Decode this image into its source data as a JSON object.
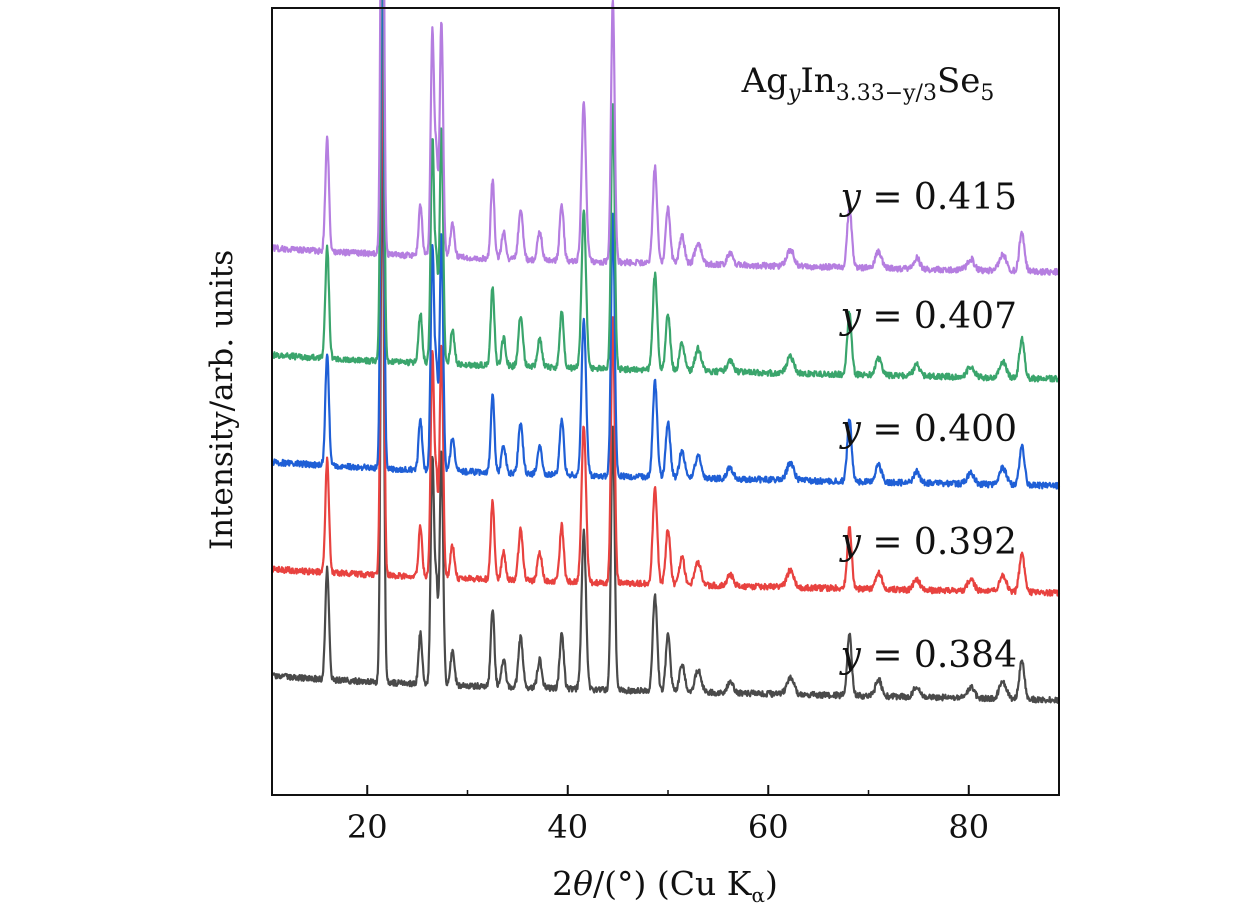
{
  "chart_data": {
    "type": "line",
    "title": "",
    "annotation": {
      "base": "Ag",
      "sub1": "y",
      "mid": "In",
      "sub2": "3.33−y/3",
      "tail": "Se",
      "sub3": "5"
    },
    "xlabel": {
      "prefix": "2",
      "theta": "θ",
      "mid": "/(°) (Cu K",
      "sub": "α",
      "suffix": ")"
    },
    "ylabel": "Intensity/arb. units",
    "xlim": [
      10.5,
      89
    ],
    "xticks": [
      20,
      40,
      60,
      80
    ],
    "xtick_labels": [
      "20",
      "40",
      "60",
      "80"
    ],
    "xminor_ticks": [
      30,
      50,
      70
    ],
    "yticks": [],
    "peaks": [
      {
        "pos": 16.0,
        "rel": 0.2,
        "w": 0.18
      },
      {
        "pos": 21.5,
        "rel": 1.0,
        "w": 0.16
      },
      {
        "pos": 25.3,
        "rel": 0.09,
        "w": 0.18
      },
      {
        "pos": 26.5,
        "rel": 0.4,
        "w": 0.17
      },
      {
        "pos": 26.9,
        "rel": 0.17,
        "w": 0.15
      },
      {
        "pos": 27.4,
        "rel": 0.42,
        "w": 0.17
      },
      {
        "pos": 28.5,
        "rel": 0.06,
        "w": 0.2
      },
      {
        "pos": 32.5,
        "rel": 0.14,
        "w": 0.18
      },
      {
        "pos": 33.6,
        "rel": 0.05,
        "w": 0.2
      },
      {
        "pos": 35.3,
        "rel": 0.09,
        "w": 0.22
      },
      {
        "pos": 37.2,
        "rel": 0.05,
        "w": 0.22
      },
      {
        "pos": 39.4,
        "rel": 0.1,
        "w": 0.2
      },
      {
        "pos": 41.6,
        "rel": 0.28,
        "w": 0.22
      },
      {
        "pos": 44.5,
        "rel": 0.47,
        "w": 0.18
      },
      {
        "pos": 48.7,
        "rel": 0.17,
        "w": 0.22
      },
      {
        "pos": 50.0,
        "rel": 0.1,
        "w": 0.22
      },
      {
        "pos": 51.4,
        "rel": 0.05,
        "w": 0.25
      },
      {
        "pos": 53.0,
        "rel": 0.04,
        "w": 0.3
      },
      {
        "pos": 56.2,
        "rel": 0.02,
        "w": 0.3
      },
      {
        "pos": 62.2,
        "rel": 0.03,
        "w": 0.35
      },
      {
        "pos": 68.1,
        "rel": 0.11,
        "w": 0.22
      },
      {
        "pos": 71.0,
        "rel": 0.03,
        "w": 0.3
      },
      {
        "pos": 74.8,
        "rel": 0.02,
        "w": 0.3
      },
      {
        "pos": 80.2,
        "rel": 0.02,
        "w": 0.35
      },
      {
        "pos": 83.4,
        "rel": 0.03,
        "w": 0.35
      },
      {
        "pos": 85.3,
        "rel": 0.07,
        "w": 0.25
      }
    ],
    "series": [
      {
        "name": "y = 0.384",
        "y_value": "0.384",
        "color": "#4a4a4a",
        "offset": 0.0
      },
      {
        "name": "y = 0.392",
        "y_value": "0.392",
        "color": "#e8423f",
        "offset": 1.0
      },
      {
        "name": "y = 0.400",
        "y_value": "0.400",
        "color": "#1f5fd6",
        "offset": 2.0
      },
      {
        "name": "y = 0.407",
        "y_value": "0.407",
        "color": "#3aa56c",
        "offset": 3.0
      },
      {
        "name": "y = 0.415",
        "y_value": "0.415",
        "color": "#b57ee0",
        "offset": 4.0
      }
    ],
    "series_label_prefix": "y",
    "series_label_eq": "="
  }
}
